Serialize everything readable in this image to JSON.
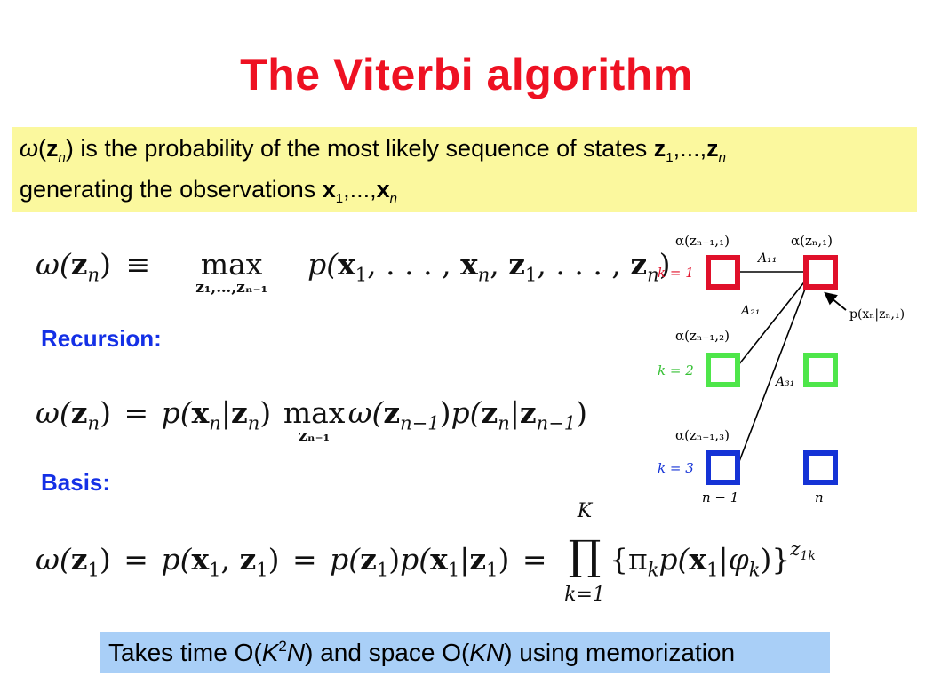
{
  "title": "The Viterbi algorithm",
  "definition": {
    "line1": {
      "omega": "ω",
      "open": "(",
      "z": "z",
      "n": "n",
      "close": ")",
      "text": " is the probability of the most likely sequence of states ",
      "z1": "z",
      "s1": "1",
      "dots": ",...,",
      "zn": "z",
      "sn": "n"
    },
    "line2": {
      "text": "generating the observations ",
      "x1": "x",
      "s1": "1",
      "dots": ",...,",
      "xn": "x",
      "sn": "n"
    }
  },
  "equations": {
    "definition": {
      "lhs": "ω(",
      "z": "z",
      "n": "n",
      "rp": ")",
      "equiv": "≡",
      "max": "max",
      "maxsub": "z₁,…,zₙ₋₁",
      "rhs_p": "p(",
      "x1": "x",
      "s1": "1",
      "c1": ", . . . , ",
      "xn": "x",
      "sn": "n",
      "c2": ", ",
      "z1": "z",
      "s3": "1",
      "c3": ", . . . , ",
      "zn": "z",
      "s4": "n",
      "end": ")"
    },
    "recursion": {
      "lhs": "ω(",
      "z": "z",
      "n": "n",
      "rp": ")",
      "eq": "=",
      "p1": "p(",
      "x": "x",
      "xn": "n",
      "bar": "|",
      "z2": "z",
      "zn2": "n",
      "rp2": ")",
      "max": "max",
      "maxsub": "zₙ₋₁",
      "w2": "ω(",
      "z3": "z",
      "sub3": "n−1",
      "rp3": ")",
      "p2": "p(",
      "z4": "z",
      "sub4": "n",
      "bar2": "|",
      "z5": "z",
      "sub5": "n−1",
      "rp5": ")"
    },
    "basis": {
      "lhs": "ω(",
      "z": "z",
      "s": "1",
      "rp": ")",
      "eq1": "=",
      "p1": "p(",
      "x": "x",
      "xs": "1",
      "comma": ", ",
      "z2": "z",
      "zs2": "1",
      "rp2": ")",
      "eq2": "=",
      "p2": "p(",
      "z3": "z",
      "zs3": "1",
      "rp3": ")",
      "p3": "p(",
      "x2": "x",
      "xs2": "1",
      "bar": "|",
      "z4": "z",
      "zs4": "1",
      "rp4": ")",
      "eq3": "=",
      "prod": "∏",
      "prod_top": "K",
      "prod_bottom": "k=1",
      "term": "{π",
      "k1": "k",
      "tp": "p(",
      "x3": "x",
      "xs3": "1",
      "bar2": "|",
      "phi": "φ",
      "k2": "k",
      "term_end": ")}",
      "exp_z": "z",
      "exp_sub": "1k"
    }
  },
  "labels": {
    "recursion": "Recursion:",
    "basis": "Basis:"
  },
  "note": {
    "a": "Takes time O(",
    "K": "K",
    "sup": "2",
    "N": "N",
    "b": ") and space O(",
    "KN": "KN",
    "c": ") using memorization"
  },
  "diagram": {
    "alpha_n1_1": "α(zₙ₋₁,₁)",
    "alpha_n_1": "α(zₙ,₁)",
    "alpha_n1_2": "α(zₙ₋₁,₂)",
    "alpha_n1_3": "α(zₙ₋₁,₃)",
    "k1": "k = 1",
    "k2": "k = 2",
    "k3": "k = 3",
    "A11": "A₁₁",
    "A21": "A₂₁",
    "A31": "A₃₁",
    "emission": "p(xₙ|zₙ,₁)",
    "col_left": "n − 1",
    "col_right": "n",
    "colors": {
      "k1": "#e0102a",
      "k2": "#4ee64a",
      "k3": "#1533d6"
    }
  }
}
